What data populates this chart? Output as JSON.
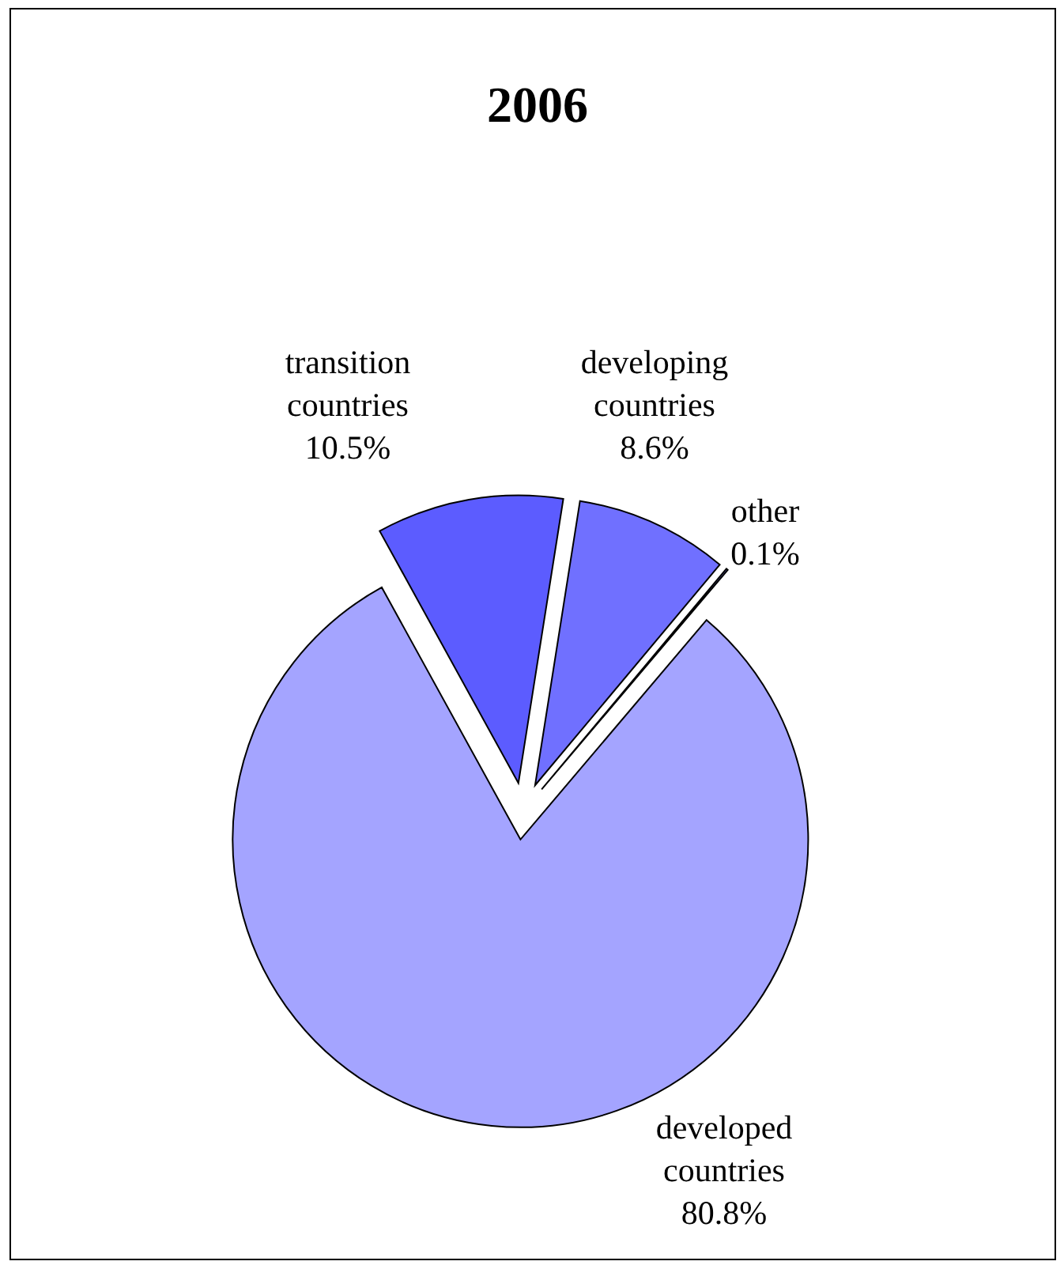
{
  "chart_data": {
    "type": "pie",
    "title": "2006",
    "categories": [
      "developed countries",
      "transition countries",
      "developing countries",
      "other"
    ],
    "values": [
      80.8,
      10.5,
      8.6,
      0.1
    ],
    "colors": [
      "#a4a4ff",
      "#5c5cff",
      "#7070ff",
      "#8c8cff"
    ],
    "value_labels": [
      "80.8%",
      "10.5%",
      "8.6%",
      "0.1%"
    ]
  }
}
